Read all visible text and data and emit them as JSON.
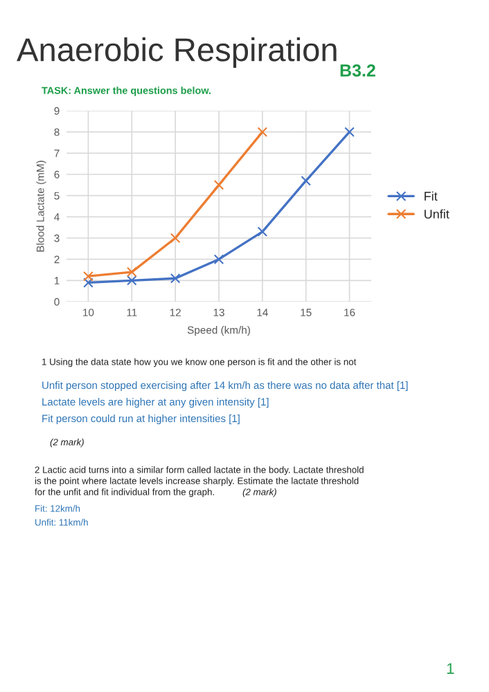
{
  "chart_data": {
    "type": "line",
    "title": "Anaerobic Respiration",
    "subtitle": "B3.2",
    "xlabel": "Speed (km/h)",
    "ylabel": "Blood Lactate (mM)",
    "categories": [
      "10",
      "11",
      "12",
      "13",
      "14",
      "15",
      "16"
    ],
    "series": [
      {
        "name": "Fit",
        "color": "#4472c4",
        "values": [
          0.9,
          1.0,
          1.1,
          2.0,
          3.3,
          5.7,
          8.0
        ]
      },
      {
        "name": "Unfit",
        "color": "#ed7d31",
        "values": [
          1.2,
          1.4,
          3.0,
          5.5,
          8.0,
          null,
          null
        ]
      }
    ],
    "ylim": [
      0,
      9
    ],
    "yticks": [
      0,
      1,
      2,
      3,
      4,
      5,
      6,
      7,
      8,
      9
    ],
    "grid": true,
    "legend": "right",
    "marker": "cross",
    "line_style": "solid",
    "annotations": [
      "TASK: Answer the questions below.",
      "1 Using the data state how you we know one person is fit and the other is not",
      "Unfit person stopped exercising after 14 km/h as there was no data after that [1]",
      "Lactate levels are higher at any given intensity [1]",
      "Fit person could run at higher intensities [1]",
      "(2 mark)",
      "2 Lactic acid turns into a similar form called lactate in the body. Lactate threshold",
      "is the point where lactate levels increase sharply. Estimate the lactate threshold",
      "for the unfit and fit individual from the graph.",
      "(2 mark)",
      "Fit: 12km/h",
      "Unfit: 11km/h",
      "1"
    ]
  }
}
